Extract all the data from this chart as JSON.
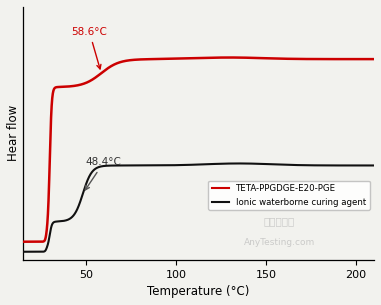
{
  "x_min": 15,
  "x_max": 210,
  "x_ticks": [
    50,
    100,
    150,
    200
  ],
  "xlabel": "Temperature (°C)",
  "ylabel": "Hear flow",
  "bg_color": "#f2f2ee",
  "red_label": "TETA-PPGDGE-E20-PGE",
  "black_label": "Ionic waterborne curing agent",
  "annotation_red_text": "58.6°C",
  "annotation_black_text": "48.4°C",
  "red_color": "#cc0000",
  "black_color": "#111111",
  "watermark1": "青松检测网",
  "watermark2": "AnyTesting.com"
}
